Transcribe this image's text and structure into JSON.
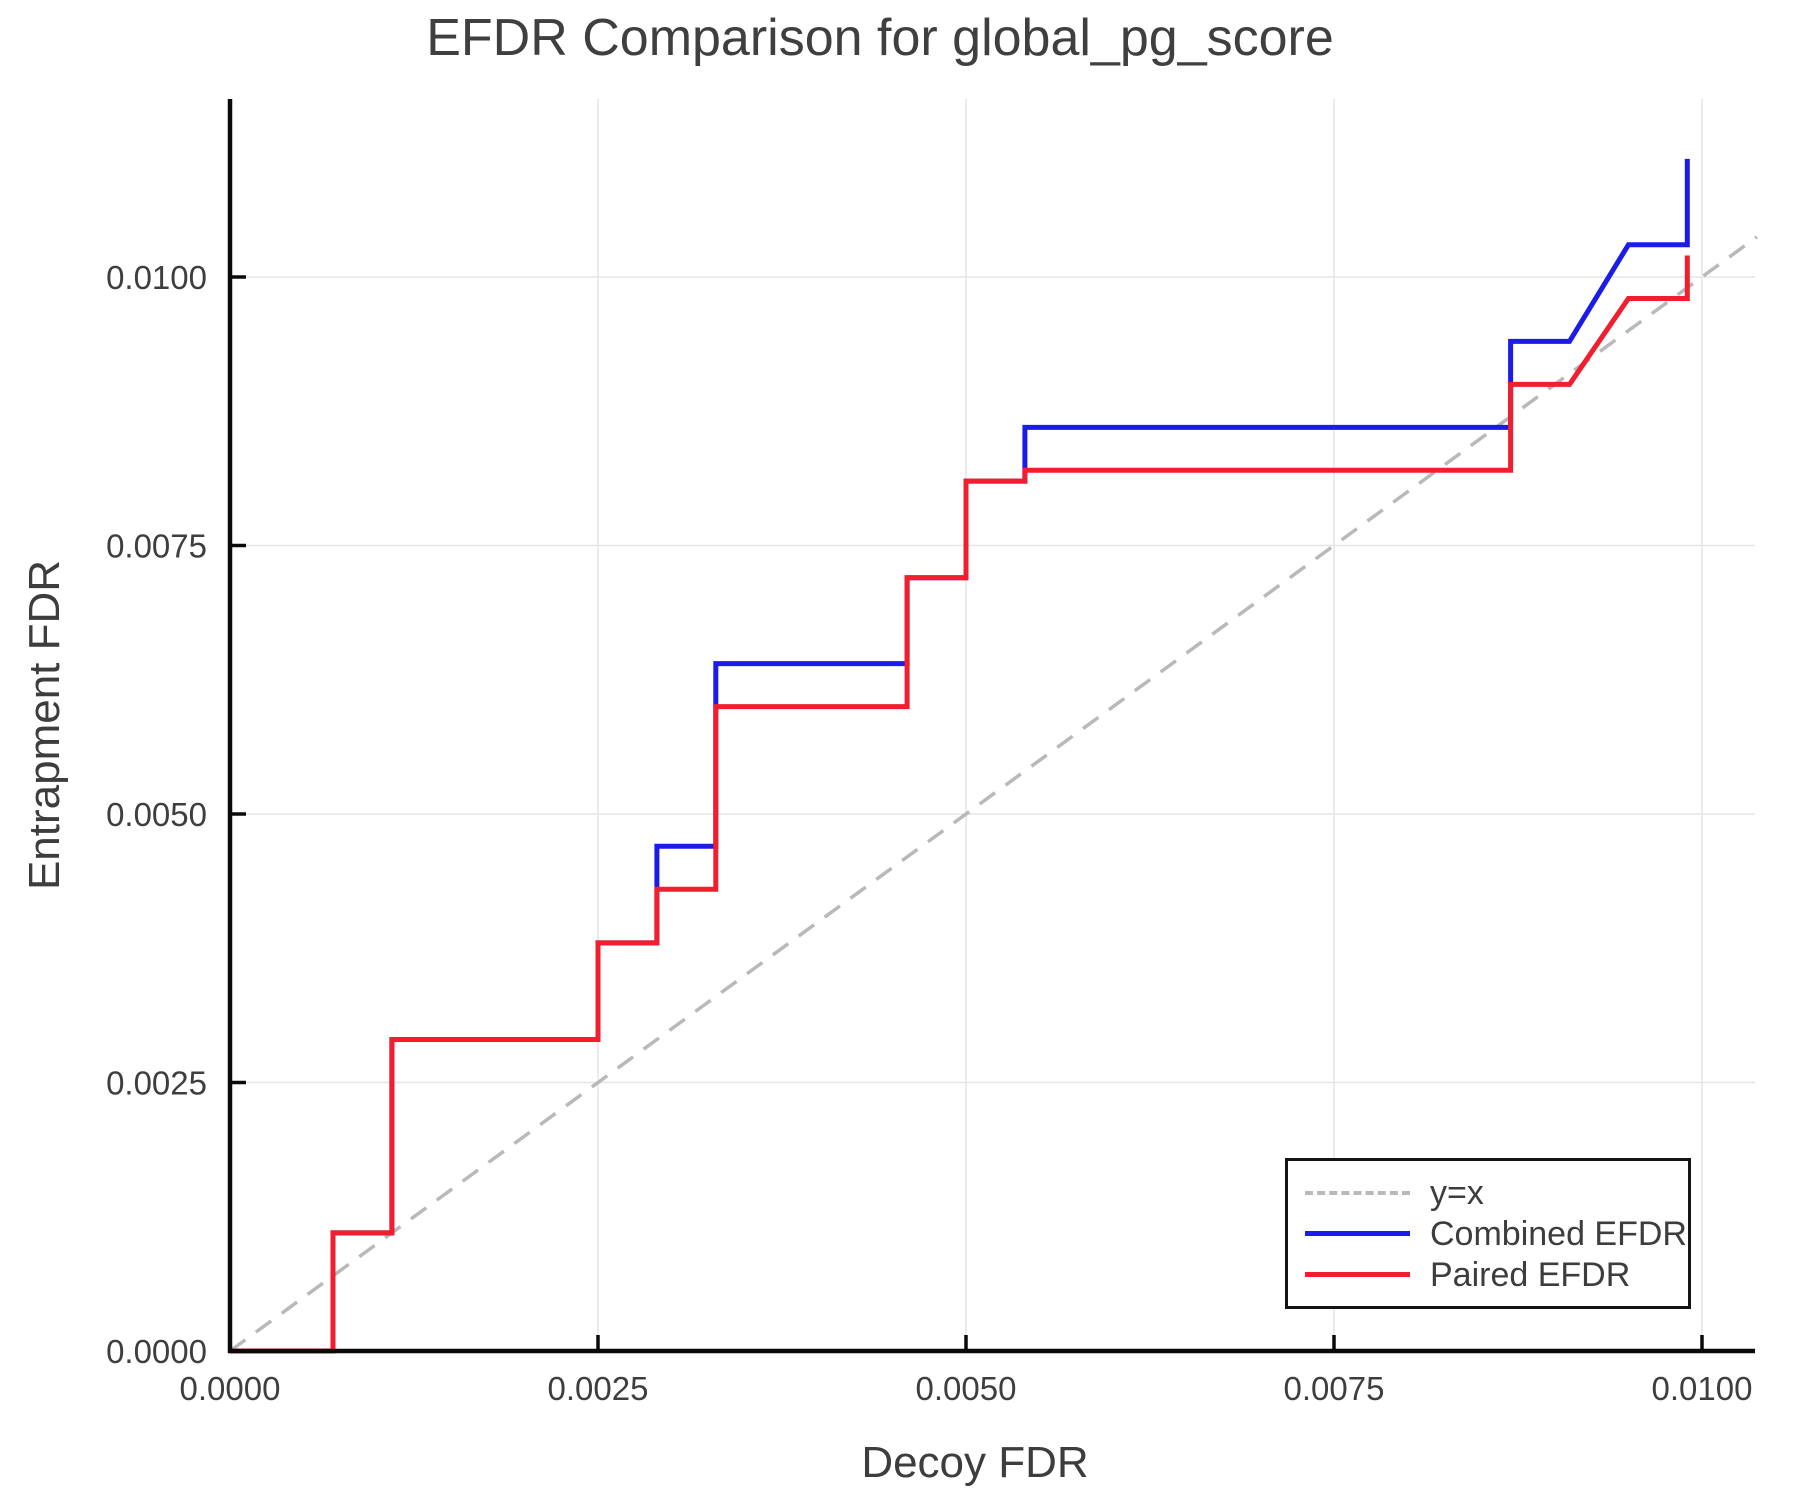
{
  "figure": {
    "title": "EFDR Comparison for global_pg_score",
    "background_color": "#ffffff",
    "text_color": "#3d3d3d"
  },
  "chart_data": {
    "type": "line",
    "title": "EFDR Comparison for global_pg_score",
    "xlabel": "Decoy FDR",
    "ylabel": "Entrapment FDR",
    "xlim": [
      0,
      0.0104
    ],
    "ylim": [
      0,
      0.0117
    ],
    "grid": true,
    "grid_color": "#e6e6e6",
    "axis_color": "#0a0a0a",
    "x_ticks": {
      "values": [
        0,
        0.0025,
        0.005,
        0.0075,
        0.01
      ],
      "labels": [
        "0.0000",
        "0.0025",
        "0.0050",
        "0.0075",
        "0.0100"
      ]
    },
    "y_ticks": {
      "values": [
        0,
        0.0025,
        0.005,
        0.0075,
        0.01
      ],
      "labels": [
        "0.0000",
        "0.0025",
        "0.0050",
        "0.0075",
        "0.0100"
      ]
    },
    "legend": {
      "position": "bottom-right"
    },
    "series": [
      {
        "name": "y=x",
        "style": "dashed",
        "color": "#b9b9b9",
        "width": 3.5,
        "points": [
          [
            0,
            0
          ],
          [
            0.010373,
            0.010373
          ]
        ]
      },
      {
        "name": "Combined EFDR",
        "style": "solid",
        "color": "#1c1ce8",
        "width": 5,
        "points": [
          [
            0,
            0
          ],
          [
            0.0007,
            0
          ],
          [
            0.0007,
            0.0011
          ],
          [
            0.0011,
            0.0011
          ],
          [
            0.0011,
            0.0029
          ],
          [
            0.0025,
            0.0029
          ],
          [
            0.0025,
            0.0038
          ],
          [
            0.0029,
            0.0038
          ],
          [
            0.0029,
            0.0047
          ],
          [
            0.0033,
            0.0047
          ],
          [
            0.0033,
            0.0064
          ],
          [
            0.0046,
            0.0064
          ],
          [
            0.0046,
            0.0072
          ],
          [
            0.005,
            0.0072
          ],
          [
            0.005,
            0.0081
          ],
          [
            0.0054,
            0.0081
          ],
          [
            0.0054,
            0.0086
          ],
          [
            0.0087,
            0.0086
          ],
          [
            0.0087,
            0.0094
          ],
          [
            0.0091,
            0.0094
          ],
          [
            0.0095,
            0.0103
          ],
          [
            0.0099,
            0.0103
          ],
          [
            0.0099,
            0.0111
          ]
        ]
      },
      {
        "name": "Paired EFDR",
        "style": "solid",
        "color": "#f21e2d",
        "width": 5,
        "points": [
          [
            0,
            0
          ],
          [
            0.0007,
            0
          ],
          [
            0.0007,
            0.0011
          ],
          [
            0.0011,
            0.0011
          ],
          [
            0.0011,
            0.0029
          ],
          [
            0.0025,
            0.0029
          ],
          [
            0.0025,
            0.0038
          ],
          [
            0.0029,
            0.0038
          ],
          [
            0.0029,
            0.0043
          ],
          [
            0.0033,
            0.0043
          ],
          [
            0.0033,
            0.006
          ],
          [
            0.0046,
            0.006
          ],
          [
            0.0046,
            0.0072
          ],
          [
            0.005,
            0.0072
          ],
          [
            0.005,
            0.0081
          ],
          [
            0.0054,
            0.0081
          ],
          [
            0.0054,
            0.0082
          ],
          [
            0.0087,
            0.0082
          ],
          [
            0.0087,
            0.009
          ],
          [
            0.0091,
            0.009
          ],
          [
            0.0095,
            0.0098
          ],
          [
            0.0099,
            0.0098
          ],
          [
            0.0099,
            0.0102
          ]
        ]
      }
    ]
  }
}
